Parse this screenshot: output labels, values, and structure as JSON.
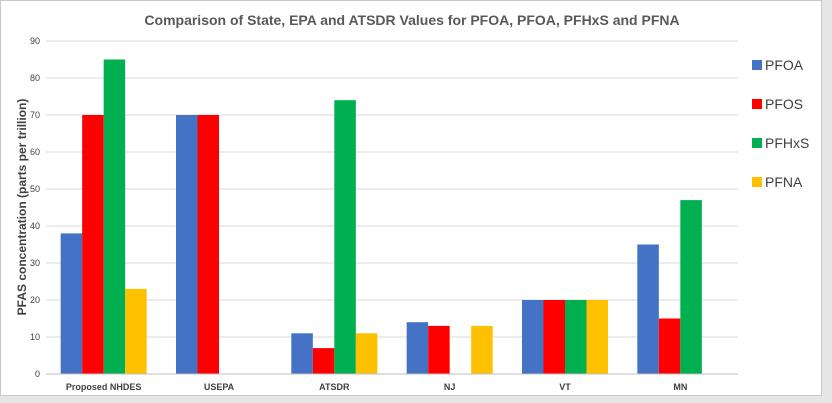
{
  "chart_data": {
    "type": "bar",
    "title": "Comparison of State, EPA and ATSDR Values for PFOA, PFOA, PFHxS and PFNA",
    "xlabel": "",
    "ylabel": "PFAS concentration (parts per trillion)",
    "ylim": [
      0,
      90
    ],
    "yticks": [
      0,
      10,
      20,
      30,
      40,
      50,
      60,
      70,
      80,
      90
    ],
    "grid": true,
    "legend_position": "right",
    "categories": [
      "Proposed NHDES",
      "USEPA",
      "ATSDR",
      "NJ",
      "VT",
      "MN"
    ],
    "series": [
      {
        "name": "PFOA",
        "color": "#4472c4",
        "values": [
          38,
          70,
          11,
          14,
          20,
          35
        ]
      },
      {
        "name": "PFOS",
        "color": "#ff0000",
        "values": [
          70,
          70,
          7,
          13,
          20,
          15
        ]
      },
      {
        "name": "PFHxS",
        "color": "#00b050",
        "values": [
          85,
          null,
          74,
          null,
          20,
          47
        ]
      },
      {
        "name": "PFNA",
        "color": "#ffc000",
        "values": [
          23,
          null,
          11,
          13,
          20,
          null
        ]
      }
    ]
  }
}
